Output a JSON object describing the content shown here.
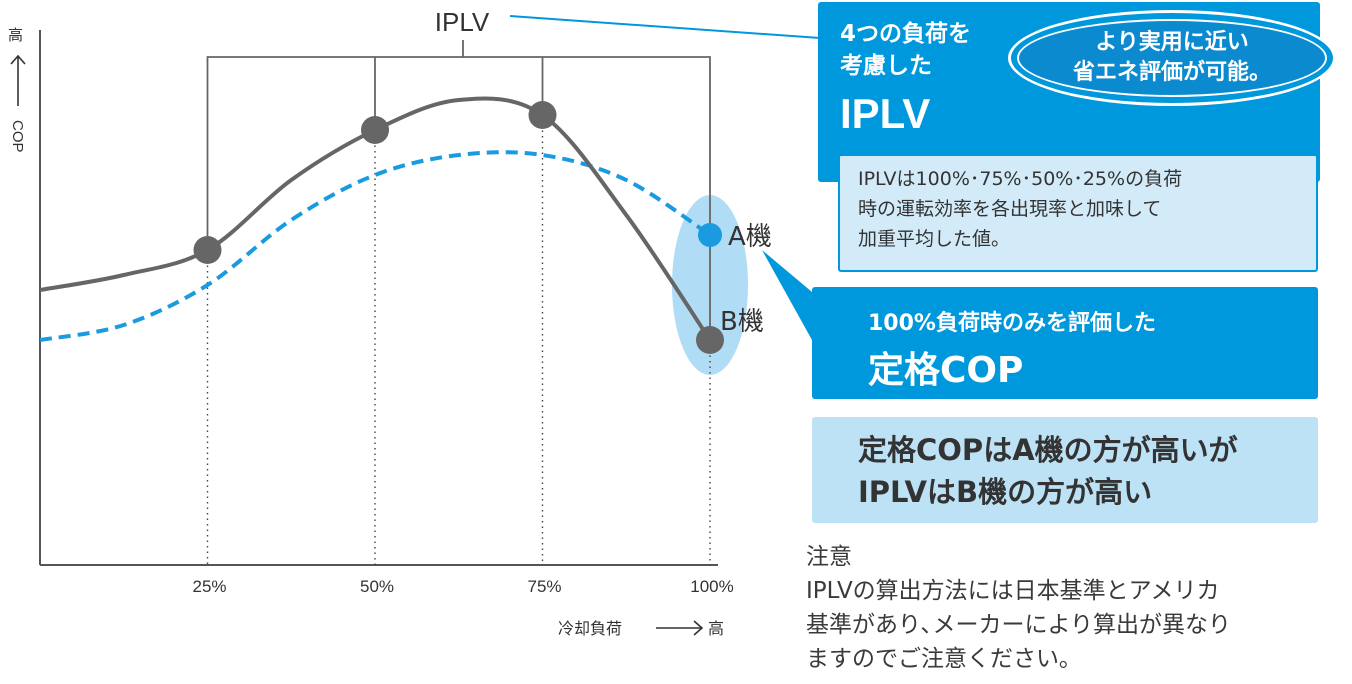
{
  "chart_data": {
    "type": "line",
    "title": "",
    "xlabel": "冷却負荷",
    "xlabel_arrow_end": "高",
    "ylabel": "COP",
    "ylabel_arrow_end": "高",
    "categories": [
      "25%",
      "50%",
      "75%",
      "100%"
    ],
    "bracket_label": "IPLV",
    "series": [
      {
        "name": "B機",
        "style": "solid",
        "color": "#666666",
        "markers": true,
        "x": [
          0,
          12.5,
          25,
          37.5,
          50,
          62.5,
          75,
          87.5,
          100
        ],
        "y": [
          55,
          58,
          63,
          77,
          87,
          93,
          90,
          70,
          45
        ],
        "marker_values": [
          63,
          87,
          90,
          45
        ]
      },
      {
        "name": "A機",
        "style": "dashed",
        "color": "#1a9be0",
        "markers": false,
        "x": [
          0,
          12.5,
          25,
          37.5,
          50,
          62.5,
          75,
          87.5,
          100
        ],
        "y": [
          45,
          48,
          56,
          69,
          78,
          82,
          82,
          77,
          66
        ],
        "end_marker_value": 66
      }
    ],
    "ylim": [
      0,
      105
    ],
    "xlim": [
      0,
      100
    ],
    "grid": false
  },
  "callouts": {
    "iplv_title_line1": "4つの負荷を",
    "iplv_title_line2": "考慮した",
    "iplv_big": "IPLV",
    "badge_line1": "より実用に近い",
    "badge_line2": "省エネ評価が可能。",
    "iplv_desc_line1": "IPLVは100%･75%･50%･25%の負荷",
    "iplv_desc_line2": "時の運転効率を各出現率と加味して",
    "iplv_desc_line3": "加重平均した値。",
    "rated_line1": "100%負荷時のみを評価した",
    "rated_line2": "定格COP",
    "compare_line1": "定格COPはA機の方が高いが",
    "compare_line2": "IPLVはB機の方が高い"
  },
  "note": {
    "heading": "注意",
    "line1": "IPLVの算出方法には日本基準とアメリカ",
    "line2": "基準があり､メーカーにより算出が異なり",
    "line3": "ますのでご注意ください｡"
  },
  "colors": {
    "accent": "#0098dc",
    "light_panel": "#d3ebf9",
    "compare_panel": "#bde2f6",
    "curve_b": "#666666",
    "curve_a": "#1a9be0",
    "highlight_ellipse": "#a9d8f4"
  }
}
